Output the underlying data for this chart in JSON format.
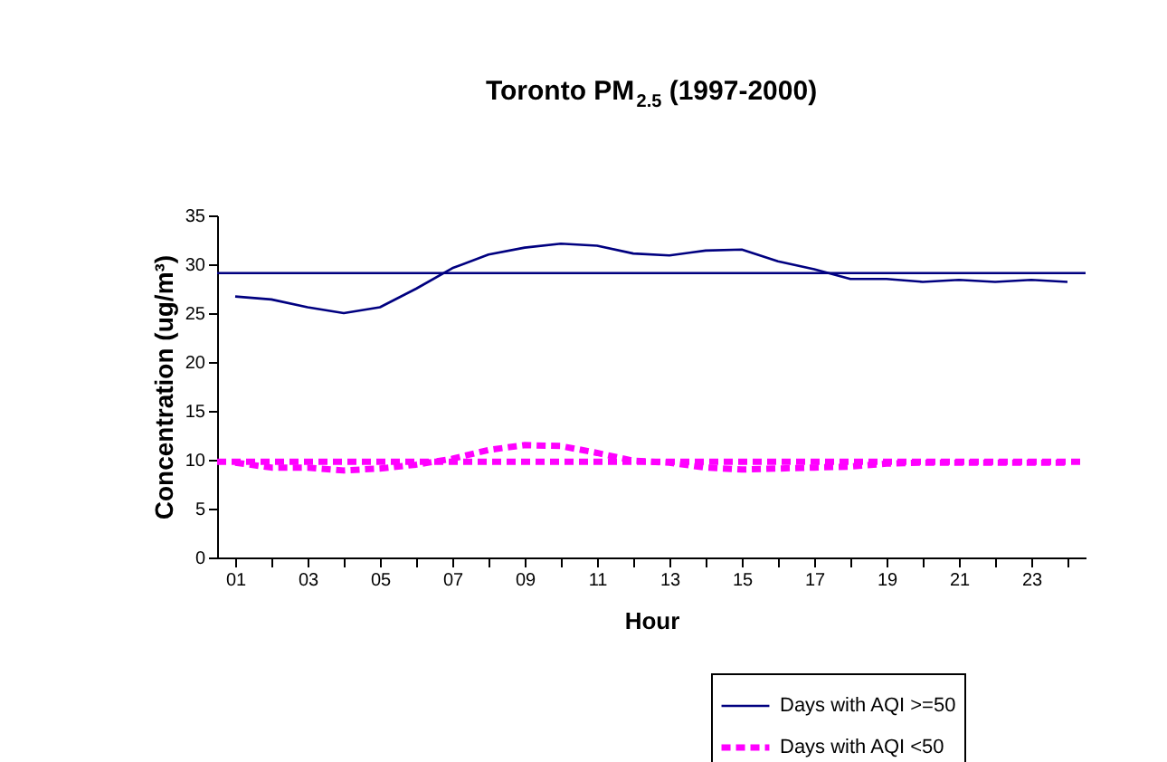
{
  "chart_data": {
    "type": "line",
    "title": "Toronto PM$_{2.5}$ (1997-2000)",
    "xlabel": "Hour",
    "ylabel": "Concentration (ug/m³)",
    "categories": [
      "01",
      null,
      "03",
      null,
      "05",
      null,
      "07",
      null,
      "09",
      null,
      "11",
      null,
      "13",
      null,
      "15",
      null,
      "17",
      null,
      "19",
      null,
      "21",
      null,
      "23",
      null
    ],
    "series": [
      {
        "name": "Days with AQI >=50",
        "color": "#000080",
        "line_style": "solid",
        "values": [
          26.7,
          26.4,
          25.6,
          25.0,
          25.6,
          27.5,
          29.6,
          31.0,
          31.7,
          32.1,
          31.9,
          31.1,
          30.9,
          31.4,
          31.5,
          30.3,
          29.5,
          28.5,
          28.5,
          28.2,
          28.4,
          28.2,
          28.4,
          28.2
        ]
      },
      {
        "name": "Days with AQI <50",
        "color": "#ff00ff",
        "line_style": "dashed",
        "values": [
          9.7,
          9.2,
          9.2,
          8.9,
          9.1,
          9.5,
          10.1,
          11.0,
          11.5,
          11.4,
          10.7,
          9.9,
          9.7,
          9.2,
          9.0,
          9.1,
          9.2,
          9.3,
          9.6,
          9.7,
          9.7,
          9.7,
          9.7,
          9.7
        ]
      }
    ],
    "ref_lines": [
      {
        "axis": "y",
        "value": 29.1,
        "color": "#000080",
        "line_style": "solid"
      },
      {
        "axis": "y",
        "value": 9.8,
        "color": "#ff00ff",
        "line_style": "dashed"
      }
    ],
    "ylim": [
      0,
      35
    ],
    "yticks": [
      0,
      5,
      10,
      15,
      20,
      25,
      30,
      35
    ],
    "legend": "bottom right",
    "marker": "none",
    "grid": false
  }
}
